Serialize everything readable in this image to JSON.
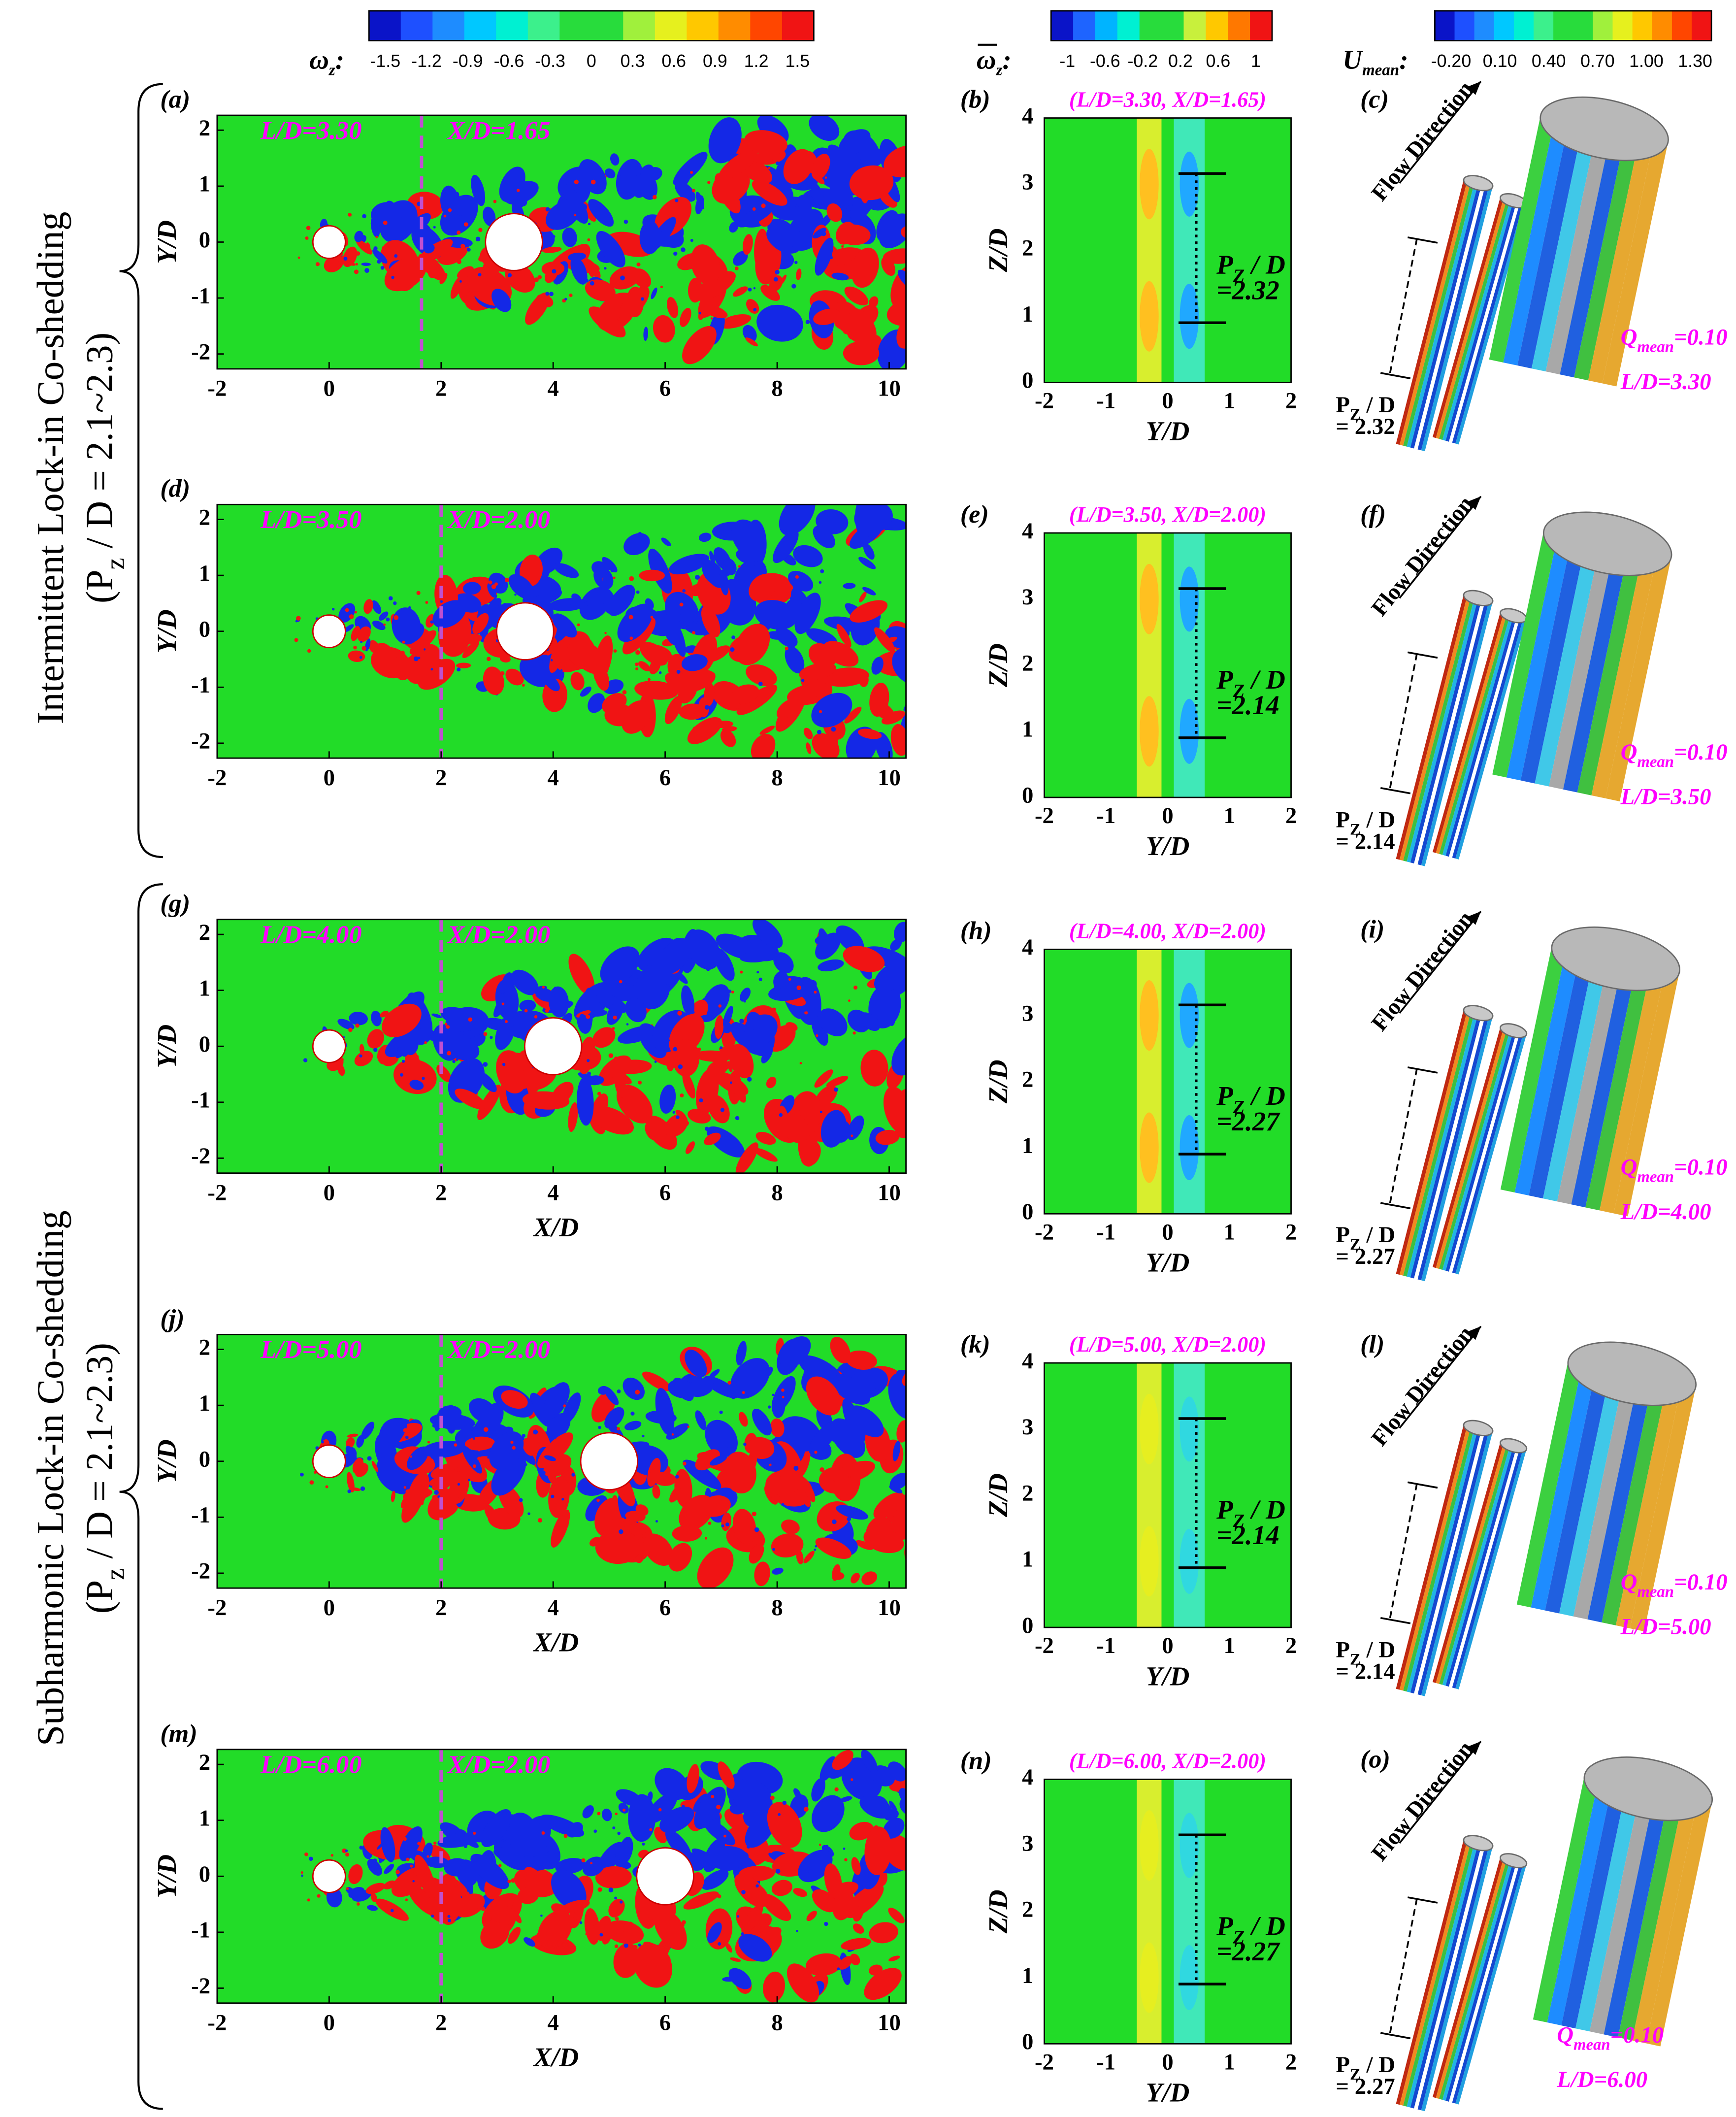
{
  "colorbars": [
    {
      "label": [
        "ω",
        "z",
        ":"
      ],
      "ticks": [
        "-1.5",
        "-1.2",
        "-0.9",
        "-0.6",
        "-0.3",
        "0",
        "0.3",
        "0.6",
        "0.9",
        "1.2",
        "1.5"
      ],
      "colors": [
        "#0a14c8",
        "#1e50ff",
        "#1e8cff",
        "#00c8ff",
        "#00f0d2",
        "#3cf08c",
        "#28dc3c",
        "#28dc3c",
        "#a0f03c",
        "#e6f01e",
        "#ffc800",
        "#ff8c00",
        "#ff4600",
        "#f01414"
      ]
    },
    {
      "label": [
        "ω",
        "z",
        ":"
      ],
      "overline": true,
      "ticks": [
        "-1",
        "-0.6",
        "-0.2",
        "0.2",
        "0.6",
        "1"
      ],
      "colors": [
        "#0a14c8",
        "#1e64ff",
        "#00b4ff",
        "#00f0d2",
        "#28dc3c",
        "#28dc3c",
        "#c8f03c",
        "#ffc800",
        "#ff7800",
        "#f01414"
      ]
    },
    {
      "label": [
        "U",
        "mean",
        ":"
      ],
      "ticks": [
        "-0.20",
        "0.10",
        "0.40",
        "0.70",
        "1.00",
        "1.30"
      ],
      "colors": [
        "#0a14c8",
        "#1e50ff",
        "#1e8cff",
        "#00c8ff",
        "#00f0d2",
        "#3cf08c",
        "#28dc3c",
        "#28dc3c",
        "#a0f03c",
        "#e6f01e",
        "#ffc800",
        "#ff8c00",
        "#ff4600",
        "#f01414"
      ]
    }
  ],
  "groups": [
    {
      "title": "Intermittent  Lock-in Co-shedding",
      "note": [
        "(P",
        "z",
        " / D = 2.1~2.3)"
      ]
    },
    {
      "title": "Subharmonic Lock-in Co-shedding",
      "note": [
        "(P",
        "z",
        " / D = 2.1~2.3)"
      ]
    }
  ],
  "axes": {
    "vort_xticks": [
      -2,
      0,
      2,
      4,
      6,
      8,
      10
    ],
    "vort_yticks": [
      -2,
      -1,
      0,
      1,
      2
    ],
    "mean_xticks": [
      -2,
      -1,
      0,
      1,
      2
    ],
    "mean_yticks": [
      0,
      1,
      2,
      3,
      4
    ]
  },
  "rows": [
    {
      "vort": {
        "letter": "(a)",
        "ld": "L/D=3.30",
        "xd": "X/D=1.65",
        "ylabel": "Y/D"
      },
      "mean": {
        "letter": "(b)",
        "title": "(L/D=3.30, X/D=1.65)",
        "pz": [
          "P",
          "Z",
          " / D"
        ],
        "pz_val": "=2.32",
        "xlabel": "Y/D",
        "ylabel": "Z/D"
      },
      "iso": {
        "letter": "(c)",
        "flow": "Flow Direction",
        "pz": [
          "P",
          "Z",
          " / D"
        ],
        "pz_val": "= 2.32",
        "q": [
          "Q",
          "mean",
          "=0.10"
        ],
        "ld": "L/D=3.30"
      }
    },
    {
      "vort": {
        "letter": "(d)",
        "ld": "L/D=3.50",
        "xd": "X/D=2.00",
        "ylabel": "Y/D"
      },
      "mean": {
        "letter": "(e)",
        "title": "(L/D=3.50, X/D=2.00)",
        "pz": [
          "P",
          "Z",
          " / D"
        ],
        "pz_val": "=2.14",
        "xlabel": "Y/D",
        "ylabel": "Z/D"
      },
      "iso": {
        "letter": "(f)",
        "flow": "Flow Direction",
        "pz": [
          "P",
          "Z",
          " / D"
        ],
        "pz_val": "= 2.14",
        "q": [
          "Q",
          "mean",
          "=0.10"
        ],
        "ld": "L/D=3.50"
      }
    },
    {
      "vort": {
        "letter": "(g)",
        "ld": "L/D=4.00",
        "xd": "X/D=2.00",
        "ylabel": "Y/D",
        "xlabel": "X/D"
      },
      "mean": {
        "letter": "(h)",
        "title": "(L/D=4.00, X/D=2.00)",
        "pz": [
          "P",
          "Z",
          " / D"
        ],
        "pz_val": "=2.27",
        "xlabel": "Y/D",
        "ylabel": "Z/D"
      },
      "iso": {
        "letter": "(i)",
        "flow": "Flow Direction",
        "pz": [
          "P",
          "Z",
          " / D"
        ],
        "pz_val": "= 2.27",
        "q": [
          "Q",
          "mean",
          "=0.10"
        ],
        "ld": "L/D=4.00"
      }
    },
    {
      "vort": {
        "letter": "(j)",
        "ld": "L/D=5.00",
        "xd": "X/D=2.00",
        "ylabel": "Y/D",
        "xlabel": "X/D"
      },
      "mean": {
        "letter": "(k)",
        "title": "(L/D=5.00, X/D=2.00)",
        "pz": [
          "P",
          "Z",
          " / D"
        ],
        "pz_val": "=2.14",
        "xlabel": "Y/D",
        "ylabel": "Z/D"
      },
      "iso": {
        "letter": "(l)",
        "flow": "Flow Direction",
        "pz": [
          "P",
          "Z",
          " / D"
        ],
        "pz_val": "= 2.14",
        "q": [
          "Q",
          "mean",
          "=0.10"
        ],
        "ld": "L/D=5.00"
      }
    },
    {
      "vort": {
        "letter": "(m)",
        "ld": "L/D=6.00",
        "xd": "X/D=2.00",
        "ylabel": "Y/D",
        "xlabel": "X/D"
      },
      "mean": {
        "letter": "(n)",
        "title": "(L/D=6.00, X/D=2.00)",
        "pz": [
          "P",
          "Z",
          " / D"
        ],
        "pz_val": "=2.27",
        "xlabel": "Y/D",
        "ylabel": "Z/D"
      },
      "iso": {
        "letter": "(o)",
        "flow": "Flow Direction",
        "pz": [
          "P",
          "Z",
          " / D"
        ],
        "pz_val": "= 2.27",
        "q": [
          "Q",
          "mean",
          "=0.10"
        ],
        "ld": "L/D=6.00"
      }
    }
  ]
}
